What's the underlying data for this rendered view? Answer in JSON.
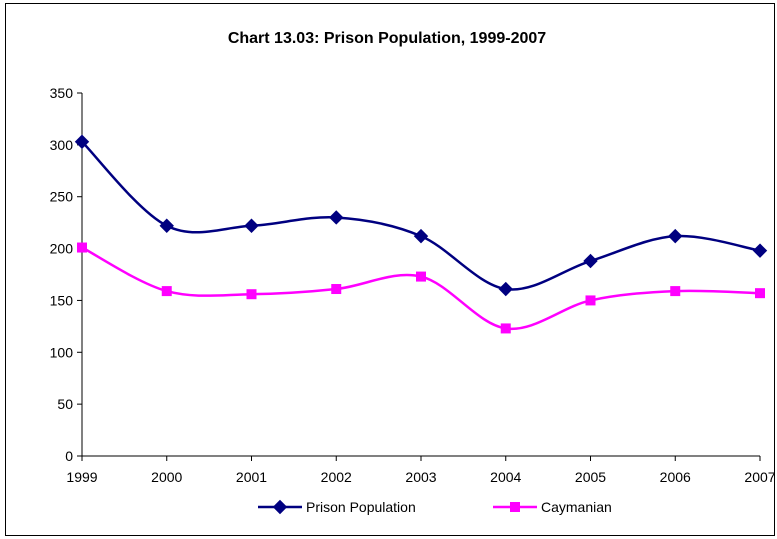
{
  "chart_data": {
    "type": "line",
    "title": "Chart 13.03: Prison Population, 1999-2007",
    "xlabel": "",
    "ylabel": "",
    "categories": [
      "1999",
      "2000",
      "2001",
      "2002",
      "2003",
      "2004",
      "2005",
      "2006",
      "2007"
    ],
    "y_ticks": [
      "0",
      "50",
      "100",
      "150",
      "200",
      "250",
      "300",
      "350"
    ],
    "ylim": [
      0,
      350
    ],
    "grid": false,
    "smooth": true,
    "legend_position": "bottom",
    "series": [
      {
        "name": "Prison Population",
        "color": "#000080",
        "marker": "diamond",
        "values": [
          303,
          222,
          222,
          230,
          212,
          161,
          188,
          212,
          198
        ]
      },
      {
        "name": "Caymanian",
        "color": "#FF00FF",
        "marker": "square",
        "values": [
          201,
          159,
          156,
          161,
          173,
          123,
          150,
          159,
          157
        ]
      }
    ]
  }
}
